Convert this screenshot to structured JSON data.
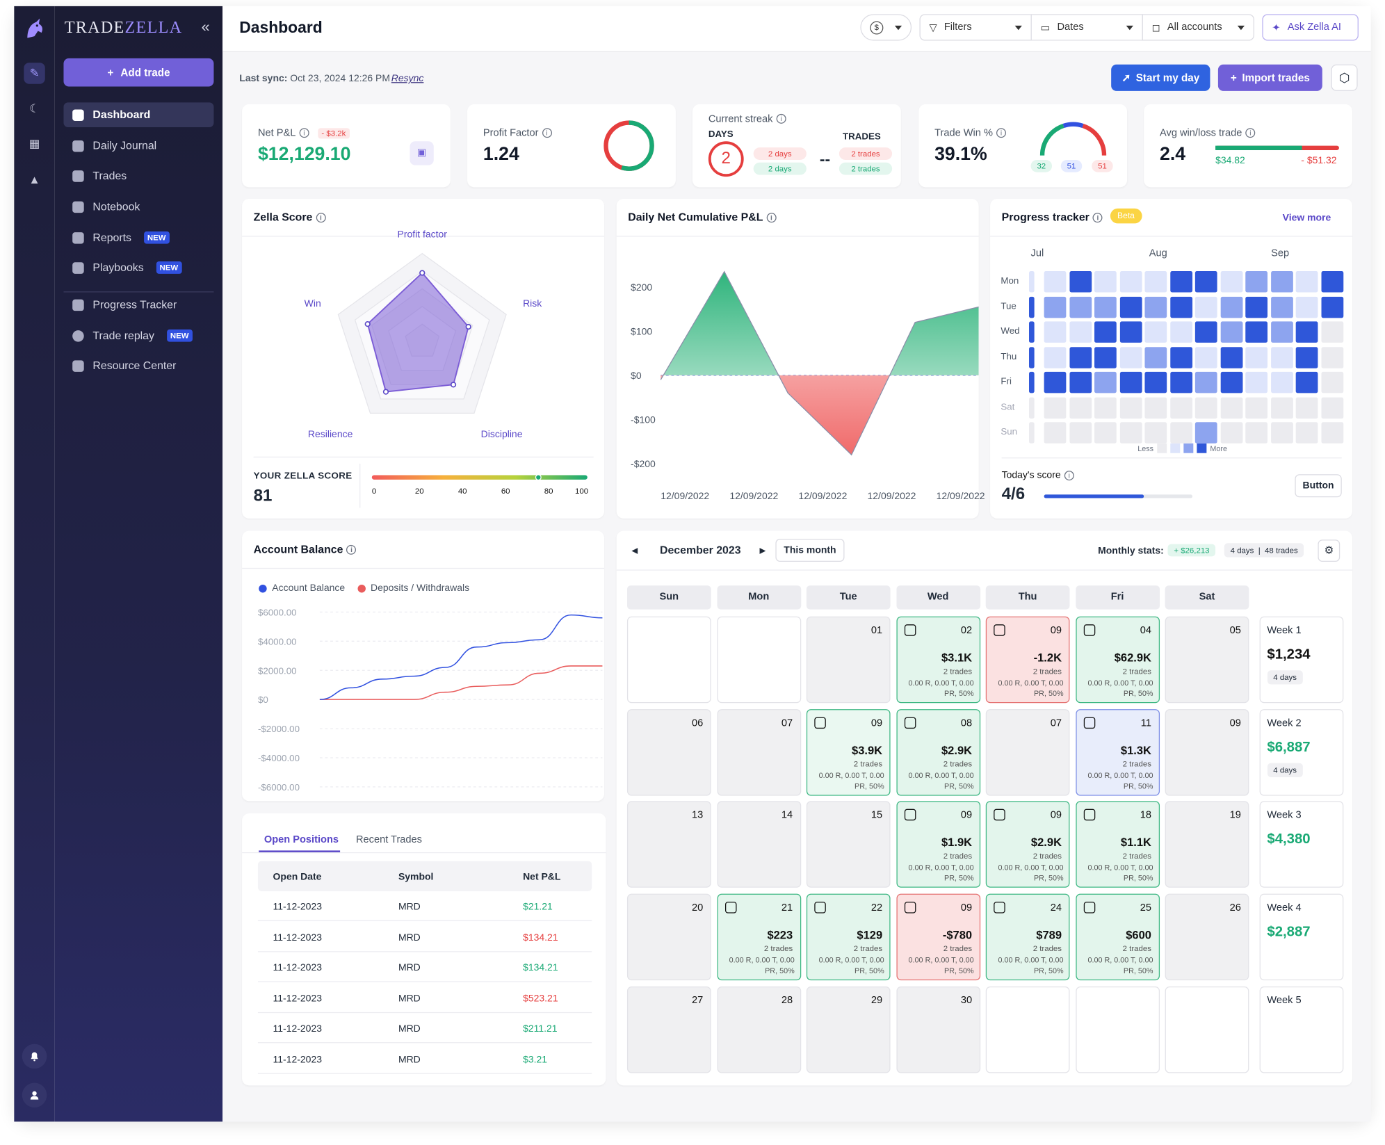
{
  "app": {
    "logo_a": "TRADE",
    "logo_b": "ZELLA",
    "collapse": "«",
    "add_trade": "Add trade"
  },
  "nav": [
    {
      "label": "Dashboard",
      "tag": ""
    },
    {
      "label": "Daily Journal",
      "tag": ""
    },
    {
      "label": "Trades",
      "tag": ""
    },
    {
      "label": "Notebook",
      "tag": ""
    },
    {
      "label": "Reports",
      "tag": "NEW"
    },
    {
      "label": "Playbooks",
      "tag": "NEW"
    },
    {
      "label": "Progress Tracker",
      "tag": ""
    },
    {
      "label": "Trade replay",
      "tag": "NEW"
    },
    {
      "label": "Resource Center",
      "tag": ""
    }
  ],
  "header": {
    "title": "Dashboard",
    "currency_icon": "dollar-icon",
    "filters": "Filters",
    "dates": "Dates",
    "accounts": "All accounts",
    "ask": "Ask Zella AI"
  },
  "sync": {
    "label": "Last sync:",
    "time": "Oct 23, 2024 12:26 PM",
    "resync": "Resync",
    "start": "Start my day",
    "import": "Import trades"
  },
  "kpi": {
    "netpnl": {
      "label": "Net P&L",
      "badge": "- $3.2k",
      "value": "$12,129.10"
    },
    "pf": {
      "label": "Profit Factor",
      "value": "1.24",
      "ratio": 0.55
    },
    "streak": {
      "label": "Current streak",
      "days": "DAYS",
      "trades": "TRADES",
      "days_value": "2",
      "days_loss": "2 days",
      "days_win": "2 days",
      "dash": "--",
      "trades_loss": "2 trades",
      "trades_win": "2 trades"
    },
    "win": {
      "label": "Trade Win %",
      "value": "39.1%",
      "w": "32",
      "be": "51",
      "l": "51"
    },
    "avg": {
      "label": "Avg win/loss trade",
      "value": "2.4",
      "win": "$34.82",
      "loss": "- $51.32",
      "ratio": 0.7
    }
  },
  "zella": {
    "title": "Zella Score",
    "axes": [
      "Profit factor",
      "Risk",
      "Discipline",
      "Resilience",
      "Win"
    ],
    "values": [
      0.78,
      0.55,
      0.6,
      0.7,
      0.65
    ],
    "score_label": "YOUR ZELLA SCORE",
    "score": "81",
    "scale": [
      "0",
      "20",
      "40",
      "60",
      "80",
      "100"
    ],
    "score_ratio": 0.81
  },
  "cum": {
    "title": "Daily Net Cumulative P&L",
    "yticks": [
      "$200",
      "$100",
      "$0",
      "-$100",
      "-$200"
    ],
    "xticks": [
      "12/09/2022",
      "12/09/2022",
      "12/09/2022",
      "12/09/2022",
      "12/09/2022"
    ],
    "points": [
      [
        0,
        -10
      ],
      [
        1,
        235
      ],
      [
        2,
        -40
      ],
      [
        3,
        -180
      ],
      [
        4,
        120
      ],
      [
        5,
        155
      ]
    ],
    "ymin": -220,
    "ymax": 240
  },
  "progress": {
    "title": "Progress tracker",
    "beta": "Beta",
    "view": "View more",
    "months": [
      "Jul",
      "Aug",
      "Sep"
    ],
    "days": [
      "Mon",
      "Tue",
      "Wed",
      "Thu",
      "Fri",
      "Sat",
      "Sun"
    ],
    "less": "Less",
    "more": "More",
    "today_label": "Today's score",
    "today": "4/6",
    "today_ratio": 0.67,
    "button": "Button",
    "grid": [
      [
        1,
        3,
        1,
        1,
        1,
        3,
        3,
        1,
        2,
        2,
        1,
        3
      ],
      [
        2,
        2,
        2,
        3,
        2,
        3,
        1,
        2,
        3,
        2,
        1,
        3
      ],
      [
        1,
        1,
        3,
        3,
        1,
        1,
        3,
        2,
        3,
        2,
        3,
        0
      ],
      [
        1,
        3,
        3,
        1,
        2,
        3,
        1,
        3,
        1,
        1,
        3,
        0
      ],
      [
        3,
        3,
        2,
        3,
        3,
        3,
        2,
        3,
        1,
        1,
        3,
        0
      ],
      [
        0,
        0,
        0,
        0,
        0,
        0,
        0,
        0,
        0,
        0,
        0,
        0
      ],
      [
        0,
        0,
        0,
        0,
        0,
        0,
        2,
        0,
        0,
        0,
        0,
        0
      ]
    ],
    "first_col": [
      1,
      3,
      3,
      3,
      3,
      0,
      0
    ]
  },
  "balance": {
    "title": "Account Balance",
    "legend_a": "Account Balance",
    "legend_b": "Deposits / Withdrawals",
    "yticks": [
      "$6000.00",
      "$4000.00",
      "$2000.00",
      "$0",
      "-$2000.00",
      "-$4000.00",
      "-$6000.00"
    ],
    "series_a": [
      0,
      800,
      1400,
      1600,
      2200,
      3600,
      3900,
      4100,
      5800,
      5600
    ],
    "series_b": [
      0,
      0,
      0,
      0,
      500,
      900,
      1000,
      1800,
      2300,
      2300
    ]
  },
  "positions": {
    "tab_a": "Open Positions",
    "tab_b": "Recent Trades",
    "cols": [
      "Open Date",
      "Symbol",
      "Net P&L"
    ],
    "rows": [
      {
        "date": "11-12-2023",
        "symbol": "MRD",
        "pnl": "$21.21",
        "color": "#19a974"
      },
      {
        "date": "11-12-2023",
        "symbol": "MRD",
        "pnl": "$134.21",
        "color": "#e53e3e"
      },
      {
        "date": "11-12-2023",
        "symbol": "MRD",
        "pnl": "$134.21",
        "color": "#19a974"
      },
      {
        "date": "11-12-2023",
        "symbol": "MRD",
        "pnl": "$523.21",
        "color": "#e53e3e"
      },
      {
        "date": "11-12-2023",
        "symbol": "MRD",
        "pnl": "$211.21",
        "color": "#19a974"
      },
      {
        "date": "11-12-2023",
        "symbol": "MRD",
        "pnl": "$3.21",
        "color": "#19a974"
      }
    ]
  },
  "calendar": {
    "month": "December 2023",
    "this_month": "This month",
    "stats_label": "Monthly stats:",
    "stats_pnl": "+ $26,213",
    "stats_days": "4 days",
    "stats_trades": "48 trades",
    "dow": [
      "Sun",
      "Mon",
      "Tue",
      "Wed",
      "Thu",
      "Fri",
      "Sat"
    ],
    "weeks": [
      {
        "label": "Week 1",
        "value": "$1,234",
        "days": "4 days",
        "cells": [
          [
            "",
            "w"
          ],
          [
            "",
            "w"
          ],
          [
            "01",
            ""
          ],
          [
            "02",
            "g",
            "$3.1K"
          ],
          [
            "09",
            "r",
            "-1.2K"
          ],
          [
            "04",
            "g",
            "$62.9K"
          ],
          [
            "05",
            ""
          ]
        ]
      },
      {
        "label": "Week 2",
        "value": "$6,887",
        "days": "4 days",
        "cells": [
          [
            "06",
            ""
          ],
          [
            "07",
            ""
          ],
          [
            "09",
            "lg",
            "$3.9K"
          ],
          [
            "08",
            "g",
            "$2.9K"
          ],
          [
            "07",
            ""
          ],
          [
            "11",
            "b",
            "$1.3K"
          ],
          [
            "09",
            ""
          ]
        ]
      },
      {
        "label": "Week 3",
        "value": "$4,380",
        "days": "",
        "cells": [
          [
            "13",
            ""
          ],
          [
            "14",
            ""
          ],
          [
            "15",
            ""
          ],
          [
            "09",
            "g",
            "$1.9K"
          ],
          [
            "09",
            "g",
            "$2.9K"
          ],
          [
            "18",
            "g",
            "$1.1K"
          ],
          [
            "19",
            ""
          ]
        ]
      },
      {
        "label": "Week 4",
        "value": "$2,887",
        "days": "",
        "cells": [
          [
            "20",
            ""
          ],
          [
            "21",
            "g",
            "$223"
          ],
          [
            "22",
            "g",
            "$129"
          ],
          [
            "09",
            "r",
            "-$780"
          ],
          [
            "24",
            "g",
            "$789"
          ],
          [
            "25",
            "g",
            "$600"
          ],
          [
            "26",
            ""
          ]
        ]
      },
      {
        "label": "Week 5",
        "value": "",
        "days": "",
        "cells": [
          [
            "27",
            ""
          ],
          [
            "28",
            ""
          ],
          [
            "29",
            ""
          ],
          [
            "30",
            ""
          ],
          [
            "",
            "w"
          ],
          [
            "",
            "w"
          ],
          [
            "",
            "w"
          ]
        ]
      }
    ],
    "cell_trades": "2 trades",
    "cell_stat1": "0.00 R, 0.00 T, 0.00",
    "cell_stat2": "PR, 50%"
  }
}
